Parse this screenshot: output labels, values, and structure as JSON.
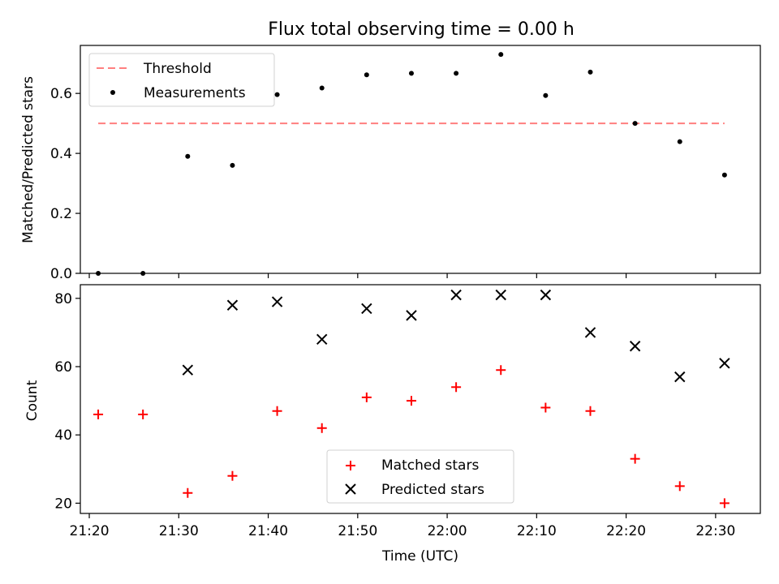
{
  "title": "Flux total observing time = 0.00 h",
  "chart_data": [
    {
      "type": "scatter",
      "ylabel": "Matched/Predicted stars",
      "ylim": [
        0,
        0.76
      ],
      "yticks": [
        "0.0",
        "0.2",
        "0.4",
        "0.6"
      ],
      "grid": false,
      "legend_position": "top-left",
      "threshold": {
        "name": "Threshold",
        "value": 0.5,
        "color": "#ff7f7f",
        "x_start": "21:21",
        "x_end": "22:31"
      },
      "series": [
        {
          "name": "Measurements",
          "color": "#000000",
          "marker": "dot",
          "x": [
            "21:21",
            "21:26",
            "21:31",
            "21:36",
            "21:41",
            "21:46",
            "21:51",
            "21:56",
            "22:01",
            "22:06",
            "22:11",
            "22:16",
            "22:21",
            "22:26",
            "22:31"
          ],
          "values": [
            0.0,
            0.0,
            0.39,
            0.36,
            0.596,
            0.618,
            0.662,
            0.667,
            0.667,
            0.73,
            0.593,
            0.671,
            0.5,
            0.439,
            0.328
          ]
        }
      ]
    },
    {
      "type": "scatter",
      "xlabel": "Time (UTC)",
      "ylabel": "Count",
      "ylim": [
        17,
        84
      ],
      "yticks": [
        "20",
        "40",
        "60",
        "80"
      ],
      "x_range": [
        "21:19",
        "22:35"
      ],
      "xticks": [
        "21:20",
        "21:30",
        "21:40",
        "21:50",
        "22:00",
        "22:10",
        "22:20",
        "22:30"
      ],
      "grid": false,
      "legend_position": "bottom-center",
      "series": [
        {
          "name": "Matched stars",
          "color": "#ff0000",
          "marker": "plus",
          "x": [
            "21:21",
            "21:26",
            "21:31",
            "21:36",
            "21:41",
            "21:46",
            "21:51",
            "21:56",
            "22:01",
            "22:06",
            "22:11",
            "22:16",
            "22:21",
            "22:26",
            "22:31"
          ],
          "values": [
            46,
            46,
            23,
            28,
            47,
            42,
            51,
            50,
            54,
            59,
            48,
            47,
            33,
            25,
            20
          ]
        },
        {
          "name": "Predicted stars",
          "color": "#000000",
          "marker": "x",
          "x": [
            "21:31",
            "21:36",
            "21:41",
            "21:46",
            "21:51",
            "21:56",
            "22:01",
            "22:06",
            "22:11",
            "22:16",
            "22:21",
            "22:26",
            "22:31"
          ],
          "values": [
            59,
            78,
            79,
            68,
            77,
            75,
            81,
            81,
            81,
            70,
            66,
            57,
            61
          ]
        }
      ]
    }
  ]
}
